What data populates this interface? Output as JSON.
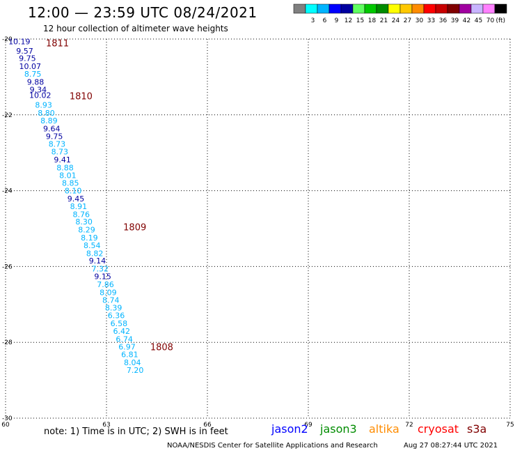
{
  "header": {
    "title": "12:00 — 23:59 UTC 08/24/2021",
    "subtitle": "12 hour collection of altimeter wave heights"
  },
  "legend": {
    "unit_label": "(ft)",
    "swatches": [
      {
        "label": "",
        "color": "#808080"
      },
      {
        "label": "3",
        "color": "#00ffff"
      },
      {
        "label": "6",
        "color": "#00b4ff"
      },
      {
        "label": "9",
        "color": "#0000ff"
      },
      {
        "label": "12",
        "color": "#0000a0"
      },
      {
        "label": "15",
        "color": "#60ff60"
      },
      {
        "label": "18",
        "color": "#00c800"
      },
      {
        "label": "21",
        "color": "#008c00"
      },
      {
        "label": "24",
        "color": "#ffff00"
      },
      {
        "label": "27",
        "color": "#ffc800"
      },
      {
        "label": "30",
        "color": "#ff8c00"
      },
      {
        "label": "33",
        "color": "#ff0000"
      },
      {
        "label": "36",
        "color": "#c80000"
      },
      {
        "label": "39",
        "color": "#800000"
      },
      {
        "label": "42",
        "color": "#a000a0"
      },
      {
        "label": "45",
        "color": "#c8b4ff"
      },
      {
        "label": "70",
        "color": "#ff80ff"
      },
      {
        "label": "",
        "color": "#000000"
      }
    ]
  },
  "footer": {
    "note": "note: 1) Time is in UTC; 2) SWH is in feet",
    "satellites": [
      {
        "name": "jason2",
        "color": "#0000ff"
      },
      {
        "name": "jason3",
        "color": "#008c00"
      },
      {
        "name": "altika",
        "color": "#ff8c00"
      },
      {
        "name": "cryosat",
        "color": "#ff0000"
      },
      {
        "name": "s3a",
        "color": "#800000"
      }
    ],
    "credit": "NOAA/NESDIS Center for Satellite Applications and Research",
    "timestamp": "Aug 27 08:27:44 UTC 2021"
  },
  "chart_data": {
    "type": "scatter",
    "title": "12:00 — 23:59 UTC 08/24/2021",
    "subtitle": "12 hour collection of altimeter wave heights",
    "xlim": [
      60,
      75
    ],
    "ylim": [
      -30,
      -20
    ],
    "x_ticks": [
      "60",
      "63",
      "66",
      "69",
      "72",
      "75"
    ],
    "y_ticks": [
      "-20",
      "-22",
      "-24",
      "-26",
      "-28",
      "-30"
    ],
    "grid": true,
    "color_scale": {
      "light": "#00b4ff",
      "dark": "#0000a0"
    },
    "points": [
      {
        "lon": 60.41,
        "lat": -20.06,
        "swh": "10.19"
      },
      {
        "lon": 60.57,
        "lat": -20.31,
        "swh": "9.57"
      },
      {
        "lon": 60.65,
        "lat": -20.51,
        "swh": "9.75"
      },
      {
        "lon": 60.73,
        "lat": -20.72,
        "swh": "10.07"
      },
      {
        "lon": 60.81,
        "lat": -20.92,
        "swh": "8.75"
      },
      {
        "lon": 60.89,
        "lat": -21.13,
        "swh": "9.88"
      },
      {
        "lon": 60.97,
        "lat": -21.33,
        "swh": "9.34"
      },
      {
        "lon": 61.03,
        "lat": -21.48,
        "swh": "10.02"
      },
      {
        "lon": 61.13,
        "lat": -21.74,
        "swh": "8.93"
      },
      {
        "lon": 61.21,
        "lat": -21.95,
        "swh": "8.80"
      },
      {
        "lon": 61.29,
        "lat": -22.15,
        "swh": "8.89"
      },
      {
        "lon": 61.37,
        "lat": -22.36,
        "swh": "9.64"
      },
      {
        "lon": 61.45,
        "lat": -22.56,
        "swh": "9.75"
      },
      {
        "lon": 61.53,
        "lat": -22.77,
        "swh": "8.73"
      },
      {
        "lon": 61.61,
        "lat": -22.97,
        "swh": "8.73"
      },
      {
        "lon": 61.69,
        "lat": -23.18,
        "swh": "9.41"
      },
      {
        "lon": 61.77,
        "lat": -23.39,
        "swh": "8.88"
      },
      {
        "lon": 61.85,
        "lat": -23.59,
        "swh": "8.01"
      },
      {
        "lon": 61.93,
        "lat": -23.8,
        "swh": "8.85"
      },
      {
        "lon": 62.01,
        "lat": -24.0,
        "swh": "8.10"
      },
      {
        "lon": 62.09,
        "lat": -24.21,
        "swh": "9.45"
      },
      {
        "lon": 62.17,
        "lat": -24.41,
        "swh": "8.91"
      },
      {
        "lon": 62.25,
        "lat": -24.62,
        "swh": "8.76"
      },
      {
        "lon": 62.33,
        "lat": -24.82,
        "swh": "8.30"
      },
      {
        "lon": 62.41,
        "lat": -25.03,
        "swh": "8.29"
      },
      {
        "lon": 62.49,
        "lat": -25.24,
        "swh": "8.19"
      },
      {
        "lon": 62.57,
        "lat": -25.44,
        "swh": "8.54"
      },
      {
        "lon": 62.65,
        "lat": -25.65,
        "swh": "8.82"
      },
      {
        "lon": 62.73,
        "lat": -25.85,
        "swh": "9.14"
      },
      {
        "lon": 62.81,
        "lat": -26.06,
        "swh": "7.32"
      },
      {
        "lon": 62.89,
        "lat": -26.26,
        "swh": "9.15"
      },
      {
        "lon": 62.97,
        "lat": -26.47,
        "swh": "7.86"
      },
      {
        "lon": 63.05,
        "lat": -26.68,
        "swh": "8.09"
      },
      {
        "lon": 63.13,
        "lat": -26.88,
        "swh": "8.74"
      },
      {
        "lon": 63.21,
        "lat": -27.09,
        "swh": "8.39"
      },
      {
        "lon": 63.29,
        "lat": -27.29,
        "swh": "6.36"
      },
      {
        "lon": 63.37,
        "lat": -27.5,
        "swh": "6.58"
      },
      {
        "lon": 63.45,
        "lat": -27.7,
        "swh": "6.42"
      },
      {
        "lon": 63.53,
        "lat": -27.91,
        "swh": "6.74"
      },
      {
        "lon": 63.61,
        "lat": -28.12,
        "swh": "6.97"
      },
      {
        "lon": 63.69,
        "lat": -28.32,
        "swh": "6.81"
      },
      {
        "lon": 63.77,
        "lat": -28.53,
        "swh": "8.04"
      },
      {
        "lon": 63.85,
        "lat": -28.73,
        "swh": "7.20"
      }
    ],
    "hour_labels": [
      {
        "text": "1811",
        "lon": 61.2,
        "lat": -20.1
      },
      {
        "text": "1810",
        "lon": 61.9,
        "lat": -21.5
      },
      {
        "text": "1809",
        "lon": 63.5,
        "lat": -24.95
      },
      {
        "text": "1808",
        "lon": 64.3,
        "lat": -28.12
      }
    ]
  }
}
